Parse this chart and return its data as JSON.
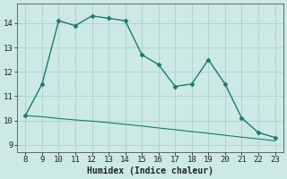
{
  "title": "",
  "xlabel": "Humidex (Indice chaleur)",
  "ylabel": "",
  "background_color": "#cce9e5",
  "grid_color": "#aed4cf",
  "line_color": "#1a7a6e",
  "marker_color": "#1a7a6e",
  "line1_x": [
    8,
    9,
    10,
    11,
    12,
    13,
    14,
    15,
    16,
    17,
    18,
    19,
    20,
    21,
    22,
    23
  ],
  "line1_y": [
    10.2,
    11.5,
    14.1,
    13.9,
    14.3,
    14.2,
    14.1,
    12.7,
    12.3,
    11.4,
    11.5,
    12.5,
    11.5,
    10.1,
    9.5,
    9.3
  ],
  "line2_x": [
    8,
    9,
    10,
    11,
    12,
    13,
    14,
    15,
    16,
    17,
    18,
    19,
    20,
    21,
    22,
    23
  ],
  "line2_y": [
    10.2,
    10.15,
    10.08,
    10.02,
    9.97,
    9.91,
    9.84,
    9.77,
    9.69,
    9.62,
    9.54,
    9.47,
    9.39,
    9.31,
    9.24,
    9.16
  ],
  "xlim": [
    7.5,
    23.5
  ],
  "ylim": [
    8.7,
    14.8
  ],
  "yticks": [
    9,
    10,
    11,
    12,
    13,
    14
  ],
  "xticks": [
    8,
    9,
    10,
    11,
    12,
    13,
    14,
    15,
    16,
    17,
    18,
    19,
    20,
    21,
    22,
    23
  ],
  "tick_fontsize": 6.5,
  "label_fontsize": 7.0,
  "linewidth1": 1.0,
  "linewidth2": 0.8,
  "markersize": 2.5
}
